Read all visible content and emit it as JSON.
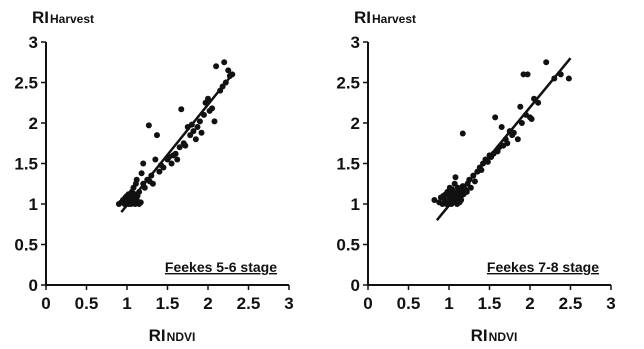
{
  "chart_data": [
    {
      "type": "scatter",
      "title": "",
      "ylabel": {
        "main": "RI",
        "sub": "Harvest"
      },
      "xlabel": {
        "main": "RI",
        "sub": "NDVI"
      },
      "xlim": [
        0,
        3
      ],
      "ylim": [
        0,
        3
      ],
      "xticks": [
        "0",
        "0.5",
        "1",
        "1.5",
        "2",
        "2.5",
        "3"
      ],
      "yticks": [
        "0",
        "0.5",
        "1",
        "1.5",
        "2",
        "2.5",
        "3"
      ],
      "grid": false,
      "annotation": "Feekes 5-6 stage",
      "trendline": {
        "x": [
          0.93,
          2.3
        ],
        "y": [
          0.9,
          2.6
        ]
      },
      "points": [
        [
          0.9,
          1.0
        ],
        [
          0.93,
          1.02
        ],
        [
          0.95,
          1.05
        ],
        [
          0.97,
          1.0
        ],
        [
          0.98,
          1.08
        ],
        [
          1.0,
          1.1
        ],
        [
          1.0,
          1.02
        ],
        [
          1.02,
          1.12
        ],
        [
          1.02,
          1.0
        ],
        [
          1.03,
          1.05
        ],
        [
          1.05,
          1.1
        ],
        [
          1.05,
          1.0
        ],
        [
          1.06,
          1.15
        ],
        [
          1.07,
          1.03
        ],
        [
          1.08,
          1.2
        ],
        [
          1.08,
          1.07
        ],
        [
          1.1,
          1.12
        ],
        [
          1.1,
          1.0
        ],
        [
          1.11,
          1.25
        ],
        [
          1.12,
          1.05
        ],
        [
          1.12,
          1.3
        ],
        [
          1.13,
          1.1
        ],
        [
          1.15,
          1.15
        ],
        [
          1.15,
          1.0
        ],
        [
          1.17,
          1.02
        ],
        [
          1.18,
          1.38
        ],
        [
          1.2,
          1.5
        ],
        [
          1.2,
          1.25
        ],
        [
          1.22,
          1.2
        ],
        [
          1.25,
          1.3
        ],
        [
          1.27,
          1.97
        ],
        [
          1.28,
          1.28
        ],
        [
          1.3,
          1.35
        ],
        [
          1.32,
          1.25
        ],
        [
          1.35,
          1.55
        ],
        [
          1.37,
          1.85
        ],
        [
          1.4,
          1.4
        ],
        [
          1.42,
          1.48
        ],
        [
          1.45,
          1.45
        ],
        [
          1.5,
          1.55
        ],
        [
          1.52,
          1.58
        ],
        [
          1.55,
          1.5
        ],
        [
          1.57,
          1.6
        ],
        [
          1.6,
          1.62
        ],
        [
          1.62,
          1.55
        ],
        [
          1.65,
          1.7
        ],
        [
          1.67,
          2.17
        ],
        [
          1.7,
          1.75
        ],
        [
          1.72,
          1.72
        ],
        [
          1.75,
          1.95
        ],
        [
          1.78,
          1.85
        ],
        [
          1.8,
          1.98
        ],
        [
          1.82,
          1.9
        ],
        [
          1.85,
          1.8
        ],
        [
          1.87,
          1.95
        ],
        [
          1.9,
          2.02
        ],
        [
          1.92,
          1.88
        ],
        [
          1.95,
          2.1
        ],
        [
          1.97,
          2.25
        ],
        [
          2.0,
          2.3
        ],
        [
          2.02,
          2.15
        ],
        [
          2.05,
          2.18
        ],
        [
          2.08,
          2.02
        ],
        [
          2.1,
          2.7
        ],
        [
          2.15,
          2.4
        ],
        [
          2.18,
          2.45
        ],
        [
          2.2,
          2.75
        ],
        [
          2.22,
          2.5
        ],
        [
          2.25,
          2.65
        ],
        [
          2.27,
          2.58
        ],
        [
          2.3,
          2.6
        ]
      ]
    },
    {
      "type": "scatter",
      "title": "",
      "ylabel": {
        "main": "RI",
        "sub": "Harvest"
      },
      "xlabel": {
        "main": "RI",
        "sub": "NDVI"
      },
      "xlim": [
        0,
        3
      ],
      "ylim": [
        0,
        3
      ],
      "xticks": [
        "0",
        "0.5",
        "1",
        "1.5",
        "2",
        "2.5",
        "3"
      ],
      "yticks": [
        "0",
        "0.5",
        "1",
        "1.5",
        "2",
        "2.5",
        "3"
      ],
      "grid": false,
      "annotation": "Feekes 7-8 stage",
      "trendline": {
        "x": [
          0.85,
          2.5
        ],
        "y": [
          0.8,
          2.8
        ]
      },
      "points": [
        [
          0.82,
          1.05
        ],
        [
          0.88,
          1.02
        ],
        [
          0.9,
          1.08
        ],
        [
          0.92,
          1.0
        ],
        [
          0.93,
          1.1
        ],
        [
          0.95,
          1.05
        ],
        [
          0.96,
          1.12
        ],
        [
          0.97,
          1.0
        ],
        [
          0.98,
          1.15
        ],
        [
          0.99,
          1.03
        ],
        [
          1.0,
          1.1
        ],
        [
          1.0,
          1.0
        ],
        [
          1.01,
          1.2
        ],
        [
          1.02,
          1.05
        ],
        [
          1.03,
          1.13
        ],
        [
          1.03,
          1.0
        ],
        [
          1.04,
          1.18
        ],
        [
          1.05,
          1.08
        ],
        [
          1.05,
          1.02
        ],
        [
          1.06,
          1.12
        ],
        [
          1.07,
          1.25
        ],
        [
          1.07,
          1.04
        ],
        [
          1.08,
          1.1
        ],
        [
          1.08,
          1.33
        ],
        [
          1.09,
          1.06
        ],
        [
          1.1,
          1.15
        ],
        [
          1.1,
          1.0
        ],
        [
          1.11,
          1.2
        ],
        [
          1.12,
          1.08
        ],
        [
          1.12,
          1.12
        ],
        [
          1.13,
          1.02
        ],
        [
          1.14,
          1.16
        ],
        [
          1.15,
          1.1
        ],
        [
          1.15,
          1.05
        ],
        [
          1.17,
          1.22
        ],
        [
          1.17,
          1.87
        ],
        [
          1.18,
          1.12
        ],
        [
          1.2,
          1.18
        ],
        [
          1.22,
          1.15
        ],
        [
          1.23,
          1.25
        ],
        [
          1.25,
          1.3
        ],
        [
          1.27,
          1.2
        ],
        [
          1.3,
          1.35
        ],
        [
          1.32,
          1.28
        ],
        [
          1.35,
          1.4
        ],
        [
          1.38,
          1.45
        ],
        [
          1.4,
          1.42
        ],
        [
          1.42,
          1.5
        ],
        [
          1.45,
          1.55
        ],
        [
          1.48,
          1.52
        ],
        [
          1.5,
          1.6
        ],
        [
          1.52,
          1.58
        ],
        [
          1.55,
          1.62
        ],
        [
          1.57,
          2.07
        ],
        [
          1.6,
          1.65
        ],
        [
          1.62,
          1.7
        ],
        [
          1.65,
          1.95
        ],
        [
          1.67,
          1.72
        ],
        [
          1.7,
          1.8
        ],
        [
          1.72,
          1.75
        ],
        [
          1.75,
          1.9
        ],
        [
          1.78,
          1.85
        ],
        [
          1.8,
          1.88
        ],
        [
          1.85,
          1.8
        ],
        [
          1.88,
          2.2
        ],
        [
          1.9,
          2.0
        ],
        [
          1.92,
          2.6
        ],
        [
          1.95,
          2.1
        ],
        [
          1.97,
          2.6
        ],
        [
          2.0,
          2.07
        ],
        [
          2.02,
          2.05
        ],
        [
          2.05,
          2.3
        ],
        [
          2.1,
          2.25
        ],
        [
          2.2,
          2.75
        ],
        [
          2.3,
          2.55
        ],
        [
          2.38,
          2.6
        ],
        [
          2.48,
          2.55
        ]
      ]
    }
  ]
}
